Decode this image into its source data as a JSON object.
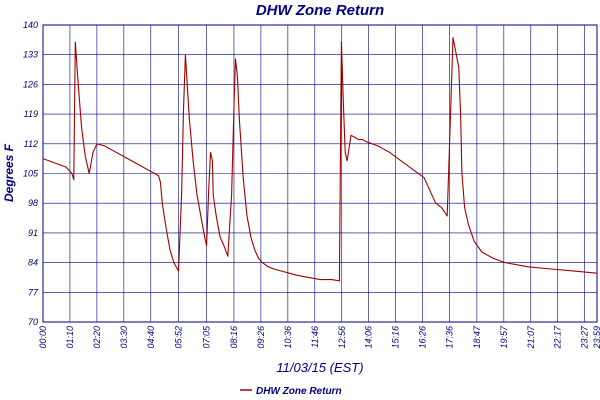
{
  "chart_data": {
    "type": "line",
    "title": "DHW Zone Return",
    "xlabel": "11/03/15 (EST)",
    "ylabel": "Degrees F",
    "ylim": [
      70,
      140
    ],
    "xlim": [
      "00:00",
      "23:59"
    ],
    "y_ticks": [
      "70",
      "77",
      "84",
      "91",
      "98",
      "105",
      "112",
      "119",
      "126",
      "133",
      "140"
    ],
    "x_ticks": [
      "00:00",
      "01:10",
      "02:20",
      "03:30",
      "04:40",
      "05:52",
      "07:05",
      "08:16",
      "09:26",
      "10:36",
      "11:46",
      "12:56",
      "14:06",
      "15:16",
      "16:26",
      "17:36",
      "18:47",
      "19:57",
      "21:07",
      "22:17",
      "23:27",
      "23:59"
    ],
    "grid": true,
    "legend_position": "bottom",
    "colors": {
      "series": "#a00000",
      "axis": "#000080",
      "grid": "#000080"
    },
    "series": [
      {
        "name": "DHW Zone Return",
        "x": [
          "00:00",
          "00:30",
          "01:00",
          "01:15",
          "01:20",
          "01:24",
          "01:30",
          "01:40",
          "01:50",
          "02:00",
          "02:10",
          "02:20",
          "02:40",
          "03:00",
          "03:30",
          "04:00",
          "04:30",
          "05:00",
          "05:05",
          "05:10",
          "05:20",
          "05:30",
          "05:40",
          "05:52",
          "06:00",
          "06:05",
          "06:10",
          "06:20",
          "06:30",
          "06:40",
          "06:50",
          "07:00",
          "07:05",
          "07:10",
          "07:15",
          "07:20",
          "07:22",
          "07:30",
          "07:40",
          "07:50",
          "08:00",
          "08:10",
          "08:16",
          "08:20",
          "08:25",
          "08:30",
          "08:40",
          "08:50",
          "09:00",
          "09:10",
          "09:20",
          "09:30",
          "09:45",
          "10:00",
          "10:20",
          "10:40",
          "11:00",
          "11:30",
          "12:00",
          "12:30",
          "12:50",
          "12:55",
          "12:57",
          "13:00",
          "13:05",
          "13:10",
          "13:20",
          "13:30",
          "13:40",
          "13:50",
          "14:00",
          "14:30",
          "15:00",
          "15:30",
          "16:00",
          "16:30",
          "16:50",
          "17:00",
          "17:15",
          "17:30",
          "17:45",
          "18:00",
          "18:05",
          "18:08",
          "18:15",
          "18:25",
          "18:40",
          "19:00",
          "19:30",
          "20:00",
          "20:30",
          "21:00",
          "22:00",
          "23:00",
          "23:59"
        ],
        "values": [
          108.5,
          107.5,
          106.5,
          105,
          103.5,
          136,
          128,
          116,
          109,
          105,
          110,
          112,
          111.5,
          110.5,
          109,
          107.5,
          106,
          104.5,
          103,
          98,
          92,
          87,
          84,
          82,
          100,
          120,
          133,
          118,
          108,
          100,
          95,
          90,
          88,
          100,
          110,
          108,
          100,
          95,
          90,
          88,
          85.5,
          100,
          121,
          132,
          128,
          118,
          104,
          95,
          90,
          87,
          85,
          84,
          83,
          82.5,
          82,
          81.5,
          81,
          80.5,
          80,
          80,
          79.7,
          136,
          131,
          122,
          110,
          108,
          114,
          113.5,
          113,
          113,
          112.5,
          111.5,
          110,
          108,
          106,
          104,
          100,
          98,
          97,
          95,
          137,
          130,
          118,
          105,
          97,
          93,
          89,
          86.5,
          85,
          84,
          83.5,
          83,
          82.5,
          82,
          81.5
        ]
      }
    ]
  }
}
